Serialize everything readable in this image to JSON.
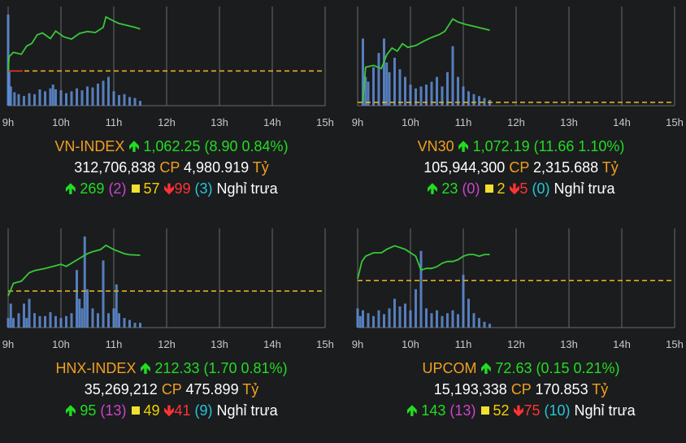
{
  "colors": {
    "background": "#1b1c1e",
    "grid": "#6a6a6a",
    "price_line": "#38c838",
    "volume": "#5f8fd8",
    "reference": "#e0b020",
    "reference_red": "#e03030",
    "up": "#22dd22",
    "down": "#ff3333",
    "name": "#f0a01e",
    "ceiling": "#cc44cc",
    "floor": "#22c8d8",
    "unchanged": "#f0e030"
  },
  "icons": {
    "up": "up-arrow-icon",
    "down": "down-arrow-icon",
    "unchanged": "square-icon"
  },
  "labels": {
    "unit_cp": "CP",
    "unit_ty": "Tỷ",
    "status": "Nghỉ trưa"
  },
  "chart_data": [
    {
      "type": "line",
      "x_ticks": [
        "9h",
        "10h",
        "11h",
        "12h",
        "13h",
        "14h",
        "15h"
      ],
      "x_range": [
        9,
        15
      ],
      "reference": 1053.35,
      "ylim": [
        1046,
        1067
      ],
      "price": [
        [
          9.0,
          1053.35
        ],
        [
          9.02,
          1056.4
        ],
        [
          9.1,
          1057.3
        ],
        [
          9.25,
          1056.9
        ],
        [
          9.35,
          1058.6
        ],
        [
          9.45,
          1059.2
        ],
        [
          9.55,
          1061.0
        ],
        [
          9.65,
          1061.4
        ],
        [
          9.8,
          1060.2
        ],
        [
          9.9,
          1061.8
        ],
        [
          10.05,
          1060.6
        ],
        [
          10.2,
          1060.1
        ],
        [
          10.35,
          1061.3
        ],
        [
          10.5,
          1061.7
        ],
        [
          10.65,
          1061.5
        ],
        [
          10.8,
          1062.6
        ],
        [
          10.85,
          1064.8
        ],
        [
          11.0,
          1063.9
        ],
        [
          11.1,
          1063.4
        ],
        [
          11.25,
          1063.0
        ],
        [
          11.4,
          1062.6
        ],
        [
          11.5,
          1062.25
        ]
      ],
      "volume": [
        [
          9.0,
          0.95
        ],
        [
          9.02,
          0.35
        ],
        [
          9.05,
          0.2
        ],
        [
          9.12,
          0.14
        ],
        [
          9.2,
          0.12
        ],
        [
          9.3,
          0.1
        ],
        [
          9.4,
          0.13
        ],
        [
          9.5,
          0.12
        ],
        [
          9.6,
          0.17
        ],
        [
          9.7,
          0.15
        ],
        [
          9.8,
          0.18
        ],
        [
          9.85,
          0.22
        ],
        [
          9.9,
          0.17
        ],
        [
          10.0,
          0.16
        ],
        [
          10.1,
          0.13
        ],
        [
          10.2,
          0.15
        ],
        [
          10.3,
          0.18
        ],
        [
          10.4,
          0.16
        ],
        [
          10.5,
          0.2
        ],
        [
          10.6,
          0.19
        ],
        [
          10.7,
          0.23
        ],
        [
          10.8,
          0.26
        ],
        [
          10.9,
          0.3
        ],
        [
          11.0,
          0.15
        ],
        [
          11.1,
          0.11
        ],
        [
          11.2,
          0.12
        ],
        [
          11.3,
          0.09
        ],
        [
          11.4,
          0.08
        ],
        [
          11.5,
          0.05
        ]
      ],
      "name": "VN-INDEX",
      "value": "1,062.25",
      "change": "(8.90 0.84%)",
      "volume_text": "312,706,838",
      "value_text": "4,980.919",
      "up_count": "269",
      "ceiling_count": "(2)",
      "unchanged_count": "57",
      "down_count": "99",
      "floor_count": "(3)"
    },
    {
      "type": "line",
      "x_ticks": [
        "9h",
        "10h",
        "11h",
        "12h",
        "13h",
        "14h",
        "15h"
      ],
      "x_range": [
        9,
        15
      ],
      "reference": 1060.53,
      "ylim": [
        1060,
        1076
      ],
      "price": [
        [
          9.1,
          1060.6
        ],
        [
          9.15,
          1066.2
        ],
        [
          9.3,
          1066.5
        ],
        [
          9.45,
          1066.0
        ],
        [
          9.55,
          1068.2
        ],
        [
          9.65,
          1069.3
        ],
        [
          9.75,
          1068.8
        ],
        [
          9.85,
          1070.0
        ],
        [
          9.95,
          1069.4
        ],
        [
          10.1,
          1069.7
        ],
        [
          10.25,
          1070.4
        ],
        [
          10.4,
          1071.0
        ],
        [
          10.55,
          1071.5
        ],
        [
          10.65,
          1072.0
        ],
        [
          10.8,
          1074.0
        ],
        [
          10.9,
          1073.5
        ],
        [
          11.05,
          1073.1
        ],
        [
          11.2,
          1072.8
        ],
        [
          11.35,
          1072.5
        ],
        [
          11.5,
          1072.19
        ]
      ],
      "volume": [
        [
          9.1,
          0.7
        ],
        [
          9.15,
          0.3
        ],
        [
          9.2,
          0.25
        ],
        [
          9.3,
          0.4
        ],
        [
          9.4,
          0.55
        ],
        [
          9.5,
          0.7
        ],
        [
          9.55,
          0.45
        ],
        [
          9.6,
          0.35
        ],
        [
          9.7,
          0.5
        ],
        [
          9.8,
          0.38
        ],
        [
          9.9,
          0.3
        ],
        [
          10.0,
          0.22
        ],
        [
          10.1,
          0.18
        ],
        [
          10.2,
          0.2
        ],
        [
          10.3,
          0.22
        ],
        [
          10.4,
          0.25
        ],
        [
          10.5,
          0.3
        ],
        [
          10.6,
          0.2
        ],
        [
          10.7,
          0.35
        ],
        [
          10.8,
          0.62
        ],
        [
          10.9,
          0.3
        ],
        [
          11.0,
          0.2
        ],
        [
          11.1,
          0.15
        ],
        [
          11.2,
          0.12
        ],
        [
          11.3,
          0.1
        ],
        [
          11.4,
          0.08
        ],
        [
          11.5,
          0.06
        ]
      ],
      "name": "VN30",
      "value": "1,072.19",
      "change": "(11.66 1.10%)",
      "volume_text": "105,944,300",
      "value_text": "2,315.688",
      "up_count": "23",
      "ceiling_count": "(0)",
      "unchanged_count": "2",
      "down_count": "5",
      "floor_count": "(0)"
    },
    {
      "type": "line",
      "x_ticks": [
        "9h",
        "10h",
        "11h",
        "12h",
        "13h",
        "14h",
        "15h"
      ],
      "x_range": [
        9,
        15
      ],
      "reference": 210.63,
      "ylim": [
        208.9,
        213.6
      ],
      "price": [
        [
          9.0,
          210.4
        ],
        [
          9.1,
          211.0
        ],
        [
          9.25,
          211.1
        ],
        [
          9.4,
          211.5
        ],
        [
          9.5,
          211.6
        ],
        [
          9.7,
          211.7
        ],
        [
          9.85,
          211.8
        ],
        [
          10.0,
          211.9
        ],
        [
          10.1,
          211.8
        ],
        [
          10.3,
          212.1
        ],
        [
          10.5,
          212.4
        ],
        [
          10.6,
          212.5
        ],
        [
          10.75,
          212.6
        ],
        [
          10.85,
          212.8
        ],
        [
          11.0,
          212.6
        ],
        [
          11.1,
          212.5
        ],
        [
          11.2,
          212.4
        ],
        [
          11.3,
          212.35
        ],
        [
          11.5,
          212.33
        ]
      ],
      "volume": [
        [
          9.0,
          0.1
        ],
        [
          9.05,
          0.25
        ],
        [
          9.1,
          0.1
        ],
        [
          9.2,
          0.15
        ],
        [
          9.3,
          0.25
        ],
        [
          9.35,
          0.1
        ],
        [
          9.4,
          0.3
        ],
        [
          9.5,
          0.15
        ],
        [
          9.6,
          0.12
        ],
        [
          9.7,
          0.12
        ],
        [
          9.8,
          0.16
        ],
        [
          9.9,
          0.12
        ],
        [
          10.0,
          0.1
        ],
        [
          10.1,
          0.12
        ],
        [
          10.2,
          0.15
        ],
        [
          10.3,
          0.6
        ],
        [
          10.35,
          0.3
        ],
        [
          10.4,
          0.2
        ],
        [
          10.45,
          0.95
        ],
        [
          10.5,
          0.4
        ],
        [
          10.6,
          0.2
        ],
        [
          10.7,
          0.15
        ],
        [
          10.8,
          0.7
        ],
        [
          10.9,
          0.15
        ],
        [
          11.0,
          0.2
        ],
        [
          11.05,
          0.45
        ],
        [
          11.1,
          0.15
        ],
        [
          11.2,
          0.1
        ],
        [
          11.3,
          0.08
        ],
        [
          11.4,
          0.05
        ],
        [
          11.5,
          0.05
        ]
      ],
      "name": "HNX-INDEX",
      "value": "212.33",
      "change": "(1.70 0.81%)",
      "volume_text": "35,269,212",
      "value_text": "475.899",
      "up_count": "95",
      "ceiling_count": "(13)",
      "unchanged_count": "49",
      "down_count": "41",
      "floor_count": "(9)"
    },
    {
      "type": "line",
      "x_ticks": [
        "9h",
        "10h",
        "11h",
        "12h",
        "13h",
        "14h",
        "15h"
      ],
      "x_range": [
        9,
        15
      ],
      "reference": 72.48,
      "ylim": [
        72.21,
        72.78
      ],
      "price": [
        [
          9.0,
          72.49
        ],
        [
          9.08,
          72.59
        ],
        [
          9.15,
          72.62
        ],
        [
          9.3,
          72.64
        ],
        [
          9.45,
          72.64
        ],
        [
          9.55,
          72.66
        ],
        [
          9.7,
          72.68
        ],
        [
          9.8,
          72.67
        ],
        [
          9.9,
          72.66
        ],
        [
          10.0,
          72.64
        ],
        [
          10.1,
          72.62
        ],
        [
          10.2,
          72.54
        ],
        [
          10.3,
          72.55
        ],
        [
          10.4,
          72.55
        ],
        [
          10.5,
          72.56
        ],
        [
          10.6,
          72.58
        ],
        [
          10.7,
          72.59
        ],
        [
          10.8,
          72.59
        ],
        [
          10.9,
          72.6
        ],
        [
          11.0,
          72.62
        ],
        [
          11.1,
          72.63
        ],
        [
          11.2,
          72.63
        ],
        [
          11.3,
          72.62
        ],
        [
          11.4,
          72.63
        ],
        [
          11.5,
          72.63
        ]
      ],
      "volume": [
        [
          9.0,
          0.2
        ],
        [
          9.05,
          0.12
        ],
        [
          9.1,
          0.18
        ],
        [
          9.2,
          0.15
        ],
        [
          9.3,
          0.12
        ],
        [
          9.4,
          0.18
        ],
        [
          9.5,
          0.14
        ],
        [
          9.6,
          0.2
        ],
        [
          9.7,
          0.3
        ],
        [
          9.8,
          0.22
        ],
        [
          9.9,
          0.25
        ],
        [
          10.0,
          0.18
        ],
        [
          10.1,
          0.4
        ],
        [
          10.2,
          0.8
        ],
        [
          10.3,
          0.2
        ],
        [
          10.4,
          0.15
        ],
        [
          10.5,
          0.18
        ],
        [
          10.6,
          0.12
        ],
        [
          10.7,
          0.15
        ],
        [
          10.8,
          0.18
        ],
        [
          10.9,
          0.14
        ],
        [
          11.0,
          0.55
        ],
        [
          11.1,
          0.3
        ],
        [
          11.2,
          0.15
        ],
        [
          11.3,
          0.1
        ],
        [
          11.4,
          0.06
        ],
        [
          11.5,
          0.04
        ]
      ],
      "name": "UPCOM",
      "value": "72.63",
      "change": "(0.15 0.21%)",
      "volume_text": "15,193,338",
      "value_text": "170.853",
      "up_count": "143",
      "ceiling_count": "(13)",
      "unchanged_count": "52",
      "down_count": "75",
      "floor_count": "(10)"
    }
  ]
}
